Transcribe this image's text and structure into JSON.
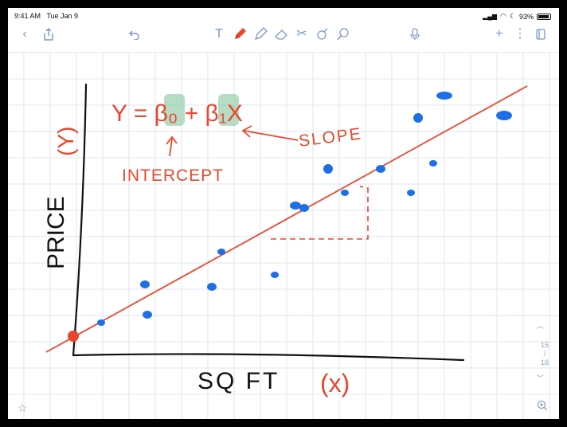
{
  "status": {
    "time": "9:41 AM",
    "date": "Tue Jan 9",
    "battery": "93%"
  },
  "toolbar": {
    "icons": [
      "chevron-left-icon",
      "share-icon",
      "undo-icon",
      "text-icon",
      "pen-icon",
      "highlighter-icon",
      "eraser-icon",
      "scissors-icon",
      "image-icon",
      "lasso-icon",
      "mic-icon",
      "add-icon",
      "more-icon",
      "pages-icon"
    ]
  },
  "note": {
    "equation": "Y = β₀ + β₁X",
    "intercept_label": "INTERCEPT",
    "slope_label": "SLOPE",
    "y_axis_label": "PRICE",
    "y_axis_var": "(Y)",
    "x_axis_label": "SQ FT",
    "x_axis_var": "(x)"
  },
  "pager": {
    "current": "15",
    "total": "16"
  },
  "colors": {
    "ink_black": "#111111",
    "ink_red": "#e8472e",
    "ink_blue": "#1e6fe6",
    "highlight": "#8fc9a4",
    "grid": "#dfe6ee",
    "toolbar_icon": "#7a98c8"
  }
}
